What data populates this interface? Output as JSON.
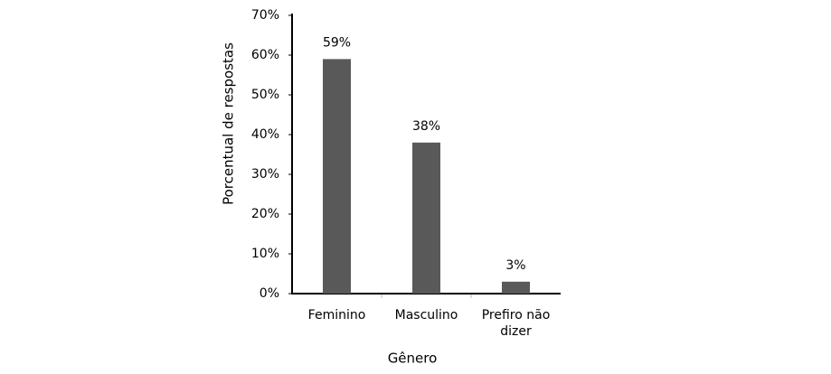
{
  "chart_data": {
    "type": "bar",
    "x_label": "Gênero",
    "y_label": "Porcentual de respostas",
    "categories": [
      "Feminino",
      "Masculino",
      "Prefiro não dizer"
    ],
    "values": [
      59,
      38,
      3
    ],
    "value_labels": [
      "59%",
      "38%",
      "3%"
    ],
    "color": "#595959",
    "ylim": [
      0,
      70
    ],
    "yticks": [
      {
        "value": 0,
        "label": "0%"
      },
      {
        "value": 10,
        "label": "10%"
      },
      {
        "value": 20,
        "label": "20%"
      },
      {
        "value": 30,
        "label": "30%"
      },
      {
        "value": 40,
        "label": "40%"
      },
      {
        "value": 50,
        "label": "50%"
      },
      {
        "value": 60,
        "label": "60%"
      },
      {
        "value": 70,
        "label": "70%"
      }
    ],
    "grid": false
  }
}
